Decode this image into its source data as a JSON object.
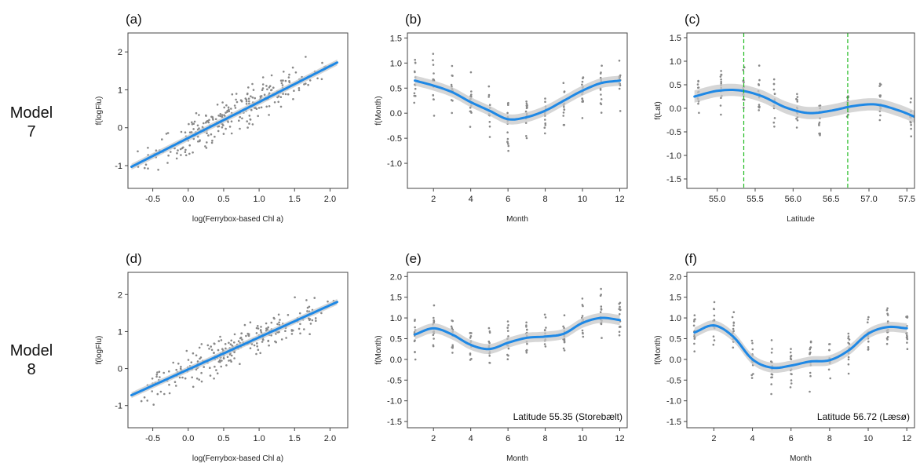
{
  "rows": [
    {
      "label_line1": "Model",
      "label_line2": "7"
    },
    {
      "label_line1": "Model",
      "label_line2": "8"
    }
  ],
  "colors": {
    "smooth": "#1e88e5",
    "band": "#c8c8c8",
    "points": "#888888",
    "vline": "#22bb22",
    "frame": "#444444"
  },
  "chart_data": [
    {
      "id": "a",
      "type": "scatter",
      "panel_label": "(a)",
      "xlabel": "log(Ferrybox-based Chl a)",
      "ylabel": "f(logFlu)",
      "xlim": [
        -0.85,
        2.25
      ],
      "ylim": [
        -1.6,
        2.5
      ],
      "xticks": [
        -0.5,
        0.0,
        0.5,
        1.0,
        1.5,
        2.0
      ],
      "xtick_labels": [
        "-0.5",
        "0.0",
        "0.5",
        "1.0",
        "1.5",
        "2.0"
      ],
      "yticks": [
        -1,
        0,
        1,
        2
      ],
      "ytick_labels": [
        "-1",
        "0",
        "1",
        "2"
      ],
      "fit": {
        "x": [
          -0.8,
          2.1
        ],
        "y": [
          -1.03,
          1.72
        ],
        "se": 0.08
      },
      "scatter": {
        "kind": "linear",
        "xmin": -0.8,
        "xmax": 2.15,
        "slope": 0.95,
        "intercept": -0.27,
        "noise": 0.42,
        "n": 260
      },
      "annotation": "",
      "vlines": []
    },
    {
      "id": "b",
      "type": "line",
      "panel_label": "(b)",
      "xlabel": "Month",
      "ylabel": "f(Month)",
      "xlim": [
        0.6,
        12.4
      ],
      "ylim": [
        -1.5,
        1.6
      ],
      "xticks": [
        2,
        4,
        6,
        8,
        10,
        12
      ],
      "xtick_labels": [
        "2",
        "4",
        "6",
        "8",
        "10",
        "12"
      ],
      "yticks": [
        -1.0,
        -0.5,
        0.0,
        0.5,
        1.0,
        1.5
      ],
      "ytick_labels": [
        "-1.0",
        "-0.5",
        "0.0",
        "0.5",
        "1.0",
        "1.5"
      ],
      "fit": {
        "x": [
          1,
          2,
          3,
          4,
          5,
          6,
          7,
          8,
          9,
          10,
          11,
          12
        ],
        "y": [
          0.65,
          0.55,
          0.42,
          0.22,
          0.05,
          -0.12,
          -0.08,
          0.05,
          0.25,
          0.45,
          0.6,
          0.65
        ],
        "se": 0.1
      },
      "scatter": {
        "kind": "strips",
        "xs": [
          1,
          2,
          3,
          4,
          5,
          6,
          7,
          8,
          9,
          10,
          11,
          12
        ],
        "spread": 0.5,
        "n": 14
      },
      "annotation": "",
      "vlines": []
    },
    {
      "id": "c",
      "type": "line",
      "panel_label": "(c)",
      "xlabel": "Latitude",
      "ylabel": "f(Lat)",
      "xlim": [
        54.6,
        57.6
      ],
      "ylim": [
        -1.7,
        1.6
      ],
      "xticks": [
        55.0,
        55.5,
        56.0,
        56.5,
        57.0,
        57.5
      ],
      "xtick_labels": [
        "55.0",
        "55.5",
        "56.0",
        "56.5",
        "57.0",
        "57.5"
      ],
      "yticks": [
        -1.5,
        -1.0,
        -0.5,
        0.0,
        0.5,
        1.0,
        1.5
      ],
      "ytick_labels": [
        "-1.5",
        "-1.0",
        "-0.5",
        "0.0",
        "0.5",
        "1.0",
        "1.5"
      ],
      "fit": {
        "x": [
          54.7,
          55.0,
          55.3,
          55.6,
          55.9,
          56.2,
          56.5,
          56.8,
          57.1,
          57.4,
          57.6
        ],
        "y": [
          0.25,
          0.37,
          0.38,
          0.25,
          0.02,
          -0.1,
          -0.05,
          0.05,
          0.08,
          -0.05,
          -0.18
        ],
        "se": 0.13
      },
      "scatter": {
        "kind": "strips",
        "xs": [
          54.75,
          55.05,
          55.35,
          55.55,
          55.75,
          56.05,
          56.35,
          56.72,
          57.15,
          57.55
        ],
        "spread": 0.45,
        "n": 14
      },
      "annotation": "",
      "vlines": [
        55.35,
        56.72
      ]
    },
    {
      "id": "d",
      "type": "scatter",
      "panel_label": "(d)",
      "xlabel": "log(Ferrybox-based Chl a)",
      "ylabel": "f(logFlu)",
      "xlim": [
        -0.85,
        2.25
      ],
      "ylim": [
        -1.6,
        2.6
      ],
      "xticks": [
        -0.5,
        0.0,
        0.5,
        1.0,
        1.5,
        2.0
      ],
      "xtick_labels": [
        "-0.5",
        "0.0",
        "0.5",
        "1.0",
        "1.5",
        "2.0"
      ],
      "yticks": [
        -1,
        0,
        1,
        2
      ],
      "ytick_labels": [
        "-1",
        "0",
        "1",
        "2"
      ],
      "fit": {
        "x": [
          -0.8,
          2.1
        ],
        "y": [
          -0.72,
          1.8
        ],
        "se": 0.08
      },
      "scatter": {
        "kind": "linear",
        "xmin": -0.8,
        "xmax": 2.15,
        "slope": 0.87,
        "intercept": -0.02,
        "noise": 0.42,
        "n": 260
      },
      "annotation": "",
      "vlines": []
    },
    {
      "id": "e",
      "type": "line",
      "panel_label": "(e)",
      "xlabel": "Month",
      "ylabel": "f(Month)",
      "xlim": [
        0.6,
        12.4
      ],
      "ylim": [
        -1.65,
        2.1
      ],
      "xticks": [
        2,
        4,
        6,
        8,
        10,
        12
      ],
      "xtick_labels": [
        "2",
        "4",
        "6",
        "8",
        "10",
        "12"
      ],
      "yticks": [
        -1.5,
        -1.0,
        -0.5,
        0.0,
        0.5,
        1.0,
        1.5,
        2.0
      ],
      "ytick_labels": [
        "-1.5",
        "-1.0",
        "-0.5",
        "0.0",
        "0.5",
        "1.0",
        "1.5",
        "2.0"
      ],
      "fit": {
        "x": [
          1,
          2,
          3,
          4,
          5,
          6,
          7,
          8,
          9,
          10,
          11,
          12
        ],
        "y": [
          0.6,
          0.75,
          0.6,
          0.35,
          0.25,
          0.4,
          0.52,
          0.55,
          0.62,
          0.88,
          1.0,
          0.95
        ],
        "se": 0.12
      },
      "scatter": {
        "kind": "strips",
        "xs": [
          1,
          2,
          3,
          4,
          5,
          6,
          7,
          8,
          9,
          10,
          11,
          12
        ],
        "spread": 0.5,
        "n": 14
      },
      "annotation": "Latitude 55.35 (Storebælt)",
      "vlines": []
    },
    {
      "id": "f",
      "type": "line",
      "panel_label": "(f)",
      "xlabel": "Month",
      "ylabel": "f(Month)",
      "xlim": [
        0.6,
        12.4
      ],
      "ylim": [
        -1.65,
        2.1
      ],
      "xticks": [
        2,
        4,
        6,
        8,
        10,
        12
      ],
      "xtick_labels": [
        "2",
        "4",
        "6",
        "8",
        "10",
        "12"
      ],
      "yticks": [
        -1.5,
        -1.0,
        -0.5,
        0.0,
        0.5,
        1.0,
        1.5,
        2.0
      ],
      "ytick_labels": [
        "-1.5",
        "-1.0",
        "-0.5",
        "0.0",
        "0.5",
        "1.0",
        "1.5",
        "2.0"
      ],
      "fit": {
        "x": [
          1,
          2,
          3,
          4,
          5,
          6,
          7,
          8,
          9,
          10,
          11,
          12
        ],
        "y": [
          0.65,
          0.82,
          0.55,
          0.0,
          -0.2,
          -0.15,
          -0.05,
          -0.02,
          0.22,
          0.62,
          0.78,
          0.75
        ],
        "se": 0.12
      },
      "scatter": {
        "kind": "strips",
        "xs": [
          1,
          2,
          3,
          4,
          5,
          6,
          7,
          8,
          9,
          10,
          11,
          12
        ],
        "spread": 0.5,
        "n": 14
      },
      "annotation": "Latitude 56.72 (Læsø)",
      "vlines": []
    }
  ]
}
